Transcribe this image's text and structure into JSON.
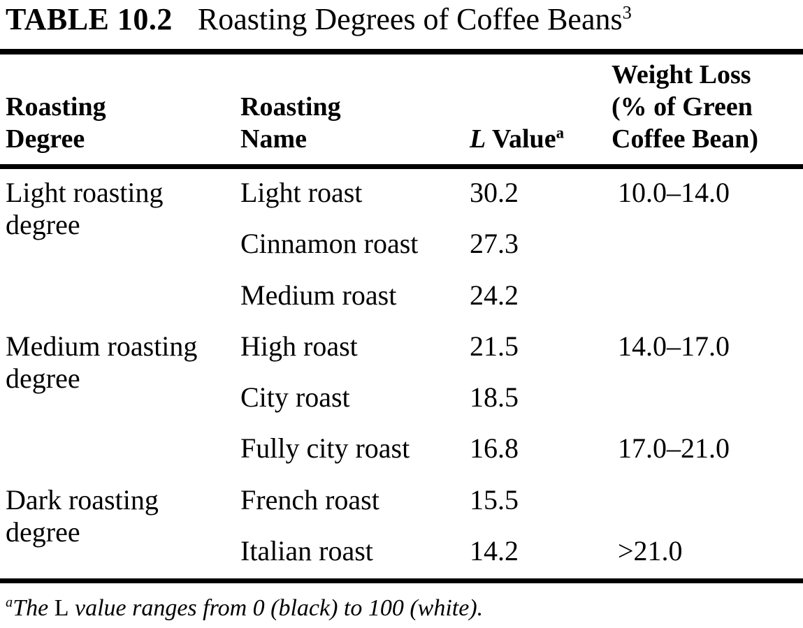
{
  "page": {
    "background": "#ffffff",
    "text_color": "#000000"
  },
  "title": {
    "label": "TABLE 10.2",
    "text": "Roasting Degrees of Coffee Beans",
    "superscript": "3"
  },
  "table": {
    "headers": {
      "degree": {
        "line1": "Roasting",
        "line2": "Degree"
      },
      "name": {
        "line1": "Roasting",
        "line2": "Name"
      },
      "l_value": {
        "symbol": "L",
        "rest": "Value",
        "superscript": "a"
      },
      "weight_loss": {
        "line1": "Weight Loss",
        "line2": "(% of Green",
        "line3": "Coffee Bean)"
      }
    },
    "rows": [
      {
        "degree": "Light roasting degree",
        "name": "Light roast",
        "l_value": "30.2",
        "weight_loss": "10.0–14.0"
      },
      {
        "degree": "",
        "name": "Cinnamon roast",
        "l_value": "27.3",
        "weight_loss": ""
      },
      {
        "degree": "",
        "name": "Medium roast",
        "l_value": "24.2",
        "weight_loss": ""
      },
      {
        "degree": "Medium roasting degree",
        "name": "High roast",
        "l_value": "21.5",
        "weight_loss": "14.0–17.0"
      },
      {
        "degree": "",
        "name": "City roast",
        "l_value": "18.5",
        "weight_loss": ""
      },
      {
        "degree": "",
        "name": "Fully city roast",
        "l_value": "16.8",
        "weight_loss": "17.0–21.0"
      },
      {
        "degree": "Dark roasting degree",
        "name": "French roast",
        "l_value": "15.5",
        "weight_loss": ""
      },
      {
        "degree": "",
        "name": "Italian roast",
        "l_value": "14.2",
        "weight_loss": ">21.0"
      }
    ]
  },
  "footnote": {
    "marker": "a",
    "pre": "The",
    "symbol": "L",
    "post": "value ranges from 0 (black) to 100 (white)."
  },
  "chart_data": {
    "type": "table",
    "title": "TABLE 10.2 Roasting Degrees of Coffee Beans",
    "columns": [
      "Roasting Degree",
      "Roasting Name",
      "L Value",
      "Weight Loss (% of Green Coffee Bean)"
    ],
    "rows": [
      [
        "Light roasting degree",
        "Light roast",
        30.2,
        "10.0–14.0"
      ],
      [
        "Light roasting degree",
        "Cinnamon roast",
        27.3,
        ""
      ],
      [
        "Light roasting degree",
        "Medium roast",
        24.2,
        ""
      ],
      [
        "Medium roasting degree",
        "High roast",
        21.5,
        "14.0–17.0"
      ],
      [
        "Medium roasting degree",
        "City roast",
        18.5,
        ""
      ],
      [
        "Medium roasting degree",
        "Fully city roast",
        16.8,
        "17.0–21.0"
      ],
      [
        "Dark roasting degree",
        "French roast",
        15.5,
        ""
      ],
      [
        "Dark roasting degree",
        "Italian roast",
        14.2,
        ">21.0"
      ]
    ],
    "footnote": "a: The L value ranges from 0 (black) to 100 (white).",
    "source_superscript": "3"
  }
}
